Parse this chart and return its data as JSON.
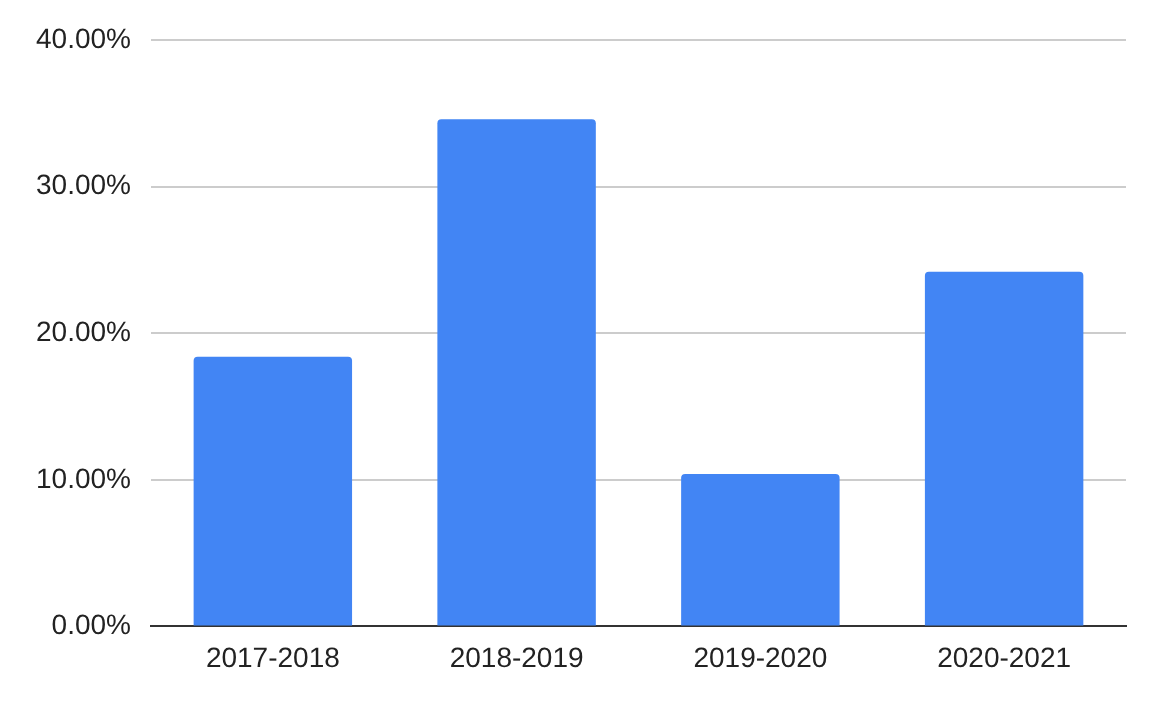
{
  "chart_data": {
    "type": "bar",
    "categories": [
      "2017-2018",
      "2018-2019",
      "2019-2020",
      "2020-2021"
    ],
    "values": [
      18.4,
      34.6,
      10.4,
      24.2
    ],
    "color": "#4285f4",
    "ylim": [
      0,
      40
    ],
    "yticks": [
      {
        "value": 0,
        "label": "0.00%"
      },
      {
        "value": 10,
        "label": "10.00%"
      },
      {
        "value": 20,
        "label": "20.00%"
      },
      {
        "value": 30,
        "label": "30.00%"
      },
      {
        "value": 40,
        "label": "40.00%"
      }
    ],
    "grid": "y",
    "legend": false
  }
}
